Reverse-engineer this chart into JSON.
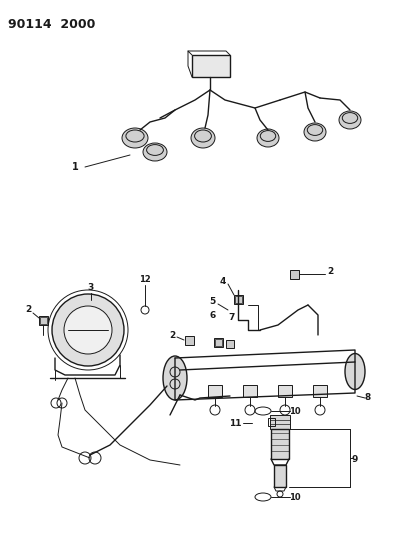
{
  "title": "90114  2000",
  "bg_color": "#ffffff",
  "line_color": "#1a1a1a",
  "fig_width": 3.98,
  "fig_height": 5.33,
  "dpi": 100
}
